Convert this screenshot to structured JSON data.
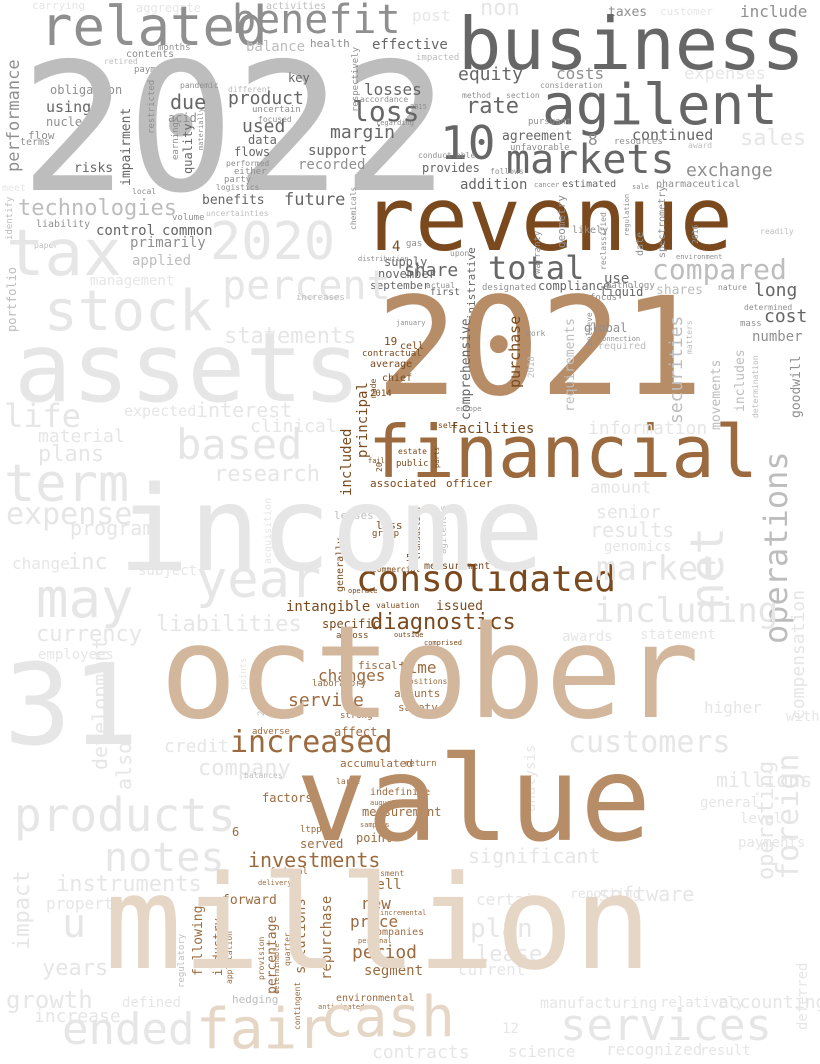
{
  "colors": {
    "background": "#ffffff",
    "grey_dark": "#666666",
    "grey_mid": "#8f8f8f",
    "grey_light": "#bdbdbd",
    "grey_faint": "#e6e6e6",
    "brown_dark": "#7a4a1e",
    "brown_mid": "#9b6b3f",
    "brown_light": "#b78d68",
    "beige": "#d3b79c",
    "beige_faint": "#e6d6c6"
  },
  "words": {
    "w2022": "2022",
    "w2021": "2021",
    "w2020": "2020",
    "business": "business",
    "agilent": "agilent",
    "related": "related",
    "benefit": "benefit",
    "revenue": "revenue",
    "financial": "financial",
    "markets": "markets",
    "w10": "10",
    "tax": "tax",
    "assets": "assets",
    "stock": "stock",
    "income": "income",
    "october": "october",
    "value": "value",
    "million": "million",
    "consolidated": "consolidated",
    "diagnostics": "diagnostics",
    "increased": "increased",
    "cash": "cash",
    "fair": "fair",
    "total": "total",
    "compared": "compared",
    "operations": "operations",
    "products": "products",
    "notes": "notes",
    "w31": "31",
    "ended": "ended",
    "services": "services",
    "percent": "percent",
    "may": "may",
    "year": "year",
    "term": "term",
    "based": "based",
    "market": "market",
    "customers": "customers",
    "including": "including",
    "net": "net",
    "foreign": "foreign",
    "investments": "investments",
    "exchange": "exchange",
    "equity": "equity",
    "loss": "loss",
    "losses": "losses",
    "rate": "rate",
    "due": "due",
    "used": "used",
    "product": "product",
    "costs": "costs",
    "technologies": "technologies",
    "future": "future",
    "support": "support",
    "margin": "margin",
    "addition": "addition",
    "agreement": "agreement",
    "continued": "continued",
    "sales": "sales",
    "share": "share",
    "long": "long",
    "cost": "cost",
    "control": "control",
    "common": "common",
    "primarily": "primarily",
    "applied": "applied",
    "effective": "effective",
    "balance": "balance",
    "flows": "flows",
    "benefits": "benefits",
    "include": "include",
    "taxes": "taxes",
    "performance": "performance",
    "impairment": "impairment",
    "using": "using",
    "nucleic": "nucleic",
    "obligation": "obligation",
    "facilities": "facilities",
    "service": "service",
    "changes": "changes",
    "intangible": "intangible",
    "specific": "specific",
    "time": "time",
    "amounts": "amounts",
    "safety": "safety",
    "issued": "issued",
    "period": "period",
    "solutions": "solutions",
    "new": "new",
    "well": "well",
    "price": "price",
    "companies": "companies",
    "segment": "segment",
    "repurchase": "repurchase",
    "percentage": "percentage",
    "industry": "industry",
    "forward": "forward",
    "following": "following",
    "factors": "factors",
    "accumulated": "accumulated",
    "affect": "affect",
    "included": "included",
    "principal": "principal",
    "officer": "officer",
    "associated": "associated",
    "comprehensive": "comprehensive",
    "purchase": "purchase",
    "securities": "securities",
    "includes": "includes",
    "number": "number",
    "goodwill": "goodwill",
    "requirements": "requirements",
    "compliance": "compliance",
    "use": "use",
    "liquid": "liquid",
    "global": "global",
    "shares": "shares",
    "instruments": "instruments",
    "impact": "impact",
    "years": "years",
    "growth": "growth",
    "liabilities": "liabilities",
    "currency": "currency",
    "inc": "inc",
    "expense": "expense",
    "research": "research",
    "interest": "interest",
    "life": "life",
    "plans": "plans",
    "statements": "statements",
    "development": "development",
    "company": "company",
    "significant": "significant",
    "software": "software",
    "compensation": "compensation",
    "plan": "plan",
    "lease": "lease",
    "contracts": "contracts",
    "inventory": "inventory",
    "property": "property",
    "gas": "gas",
    "liability": "liability",
    "risks": "risks",
    "relatively": "relatively",
    "health": "health",
    "key": "key",
    "data": "data",
    "quality": "quality",
    "acid": "acid",
    "recorded": "recorded",
    "exchange_rates": "respectively",
    "activities": "activities",
    "aggregate": "aggregate",
    "months": "months",
    "contents": "contents",
    "payment": "payment",
    "retired": "retired",
    "flow": "flow",
    "terms": "terms",
    "estimated": "estimated",
    "pharmaceutical": "pharmaceutical",
    "november": "november",
    "september": "september",
    "supply": "supply",
    "first": "first",
    "designated": "designated",
    "actual": "actual",
    "administrative": "administrative",
    "geometry": "geometry",
    "warranty": "warranty",
    "likely": "likely",
    "date": "date",
    "reclassified": "reclassified",
    "spectrometry": "spectrometry",
    "focus": "focus",
    "pathology": "pathology",
    "believe": "believe",
    "required": "required",
    "movements": "movements",
    "determination": "determination",
    "w19": "19",
    "cell": "cell",
    "contractual": "contractual",
    "average": "average",
    "made": "made",
    "chief": "chief",
    "w2014": "2014",
    "w2016": "2016",
    "w2018": "2018",
    "w4": "4",
    "w5": "5",
    "w6": "6",
    "w8": "8",
    "w20": "20",
    "sell": "sell",
    "estate": "estate",
    "public": "public",
    "fail": "fail",
    "parts": "parts",
    "less": "less",
    "group": "group",
    "leases": "leases",
    "measurement": "measurement",
    "transaction": "transaction",
    "generally": "generally",
    "commercial": "commercial",
    "operate": "operate",
    "valuation": "valuation",
    "across": "across",
    "comprised": "comprised",
    "outside": "outside",
    "fiscal": "fiscal",
    "laboratory": "laboratory",
    "positions": "positions",
    "strong": "strong",
    "adverse": "adverse",
    "return": "return",
    "indefinite": "indefinite",
    "august": "august",
    "large": "large",
    "point": "point",
    "samples": "samples",
    "ltpp": "ltpp",
    "served": "served",
    "federal": "federal",
    "delivery": "delivery",
    "assessment": "assessment",
    "incremental": "incremental",
    "personal": "personal",
    "application": "application",
    "determinable": "determinable",
    "provision": "provision",
    "quarter": "quarter",
    "contingent": "contingent",
    "anticipated": "anticipated",
    "environmental": "environmental",
    "hedging": "hedging",
    "regulatory": "regulatory",
    "defined": "defined",
    "employees": "employees",
    "acquisition": "acquisition",
    "subject": "subject",
    "increases": "increases",
    "management": "management",
    "paper": "paper",
    "identify": "identify",
    "portfolio": "portfolio",
    "volume": "volume",
    "uncertainties": "uncertainties",
    "logistics": "logistics",
    "either": "either",
    "party": "party",
    "performed": "performed",
    "different": "different",
    "pandemic": "pandemic",
    "uncertain": "uncertain",
    "focused": "focused",
    "regarding": "regarding",
    "accordance": "accordance",
    "impacted": "impacted",
    "method": "method",
    "section": "section",
    "consideration": "consideration",
    "pursuant": "pursuant",
    "unfavorable": "unfavorable",
    "follows": "follows",
    "conduct": "conduct",
    "provides": "provides",
    "able": "able",
    "resources": "resources",
    "award": "award",
    "cancer": "cancer",
    "sale": "sale",
    "chemicals": "chemicals",
    "local": "local",
    "upon": "upon",
    "distribution": "distribution",
    "environment": "environment",
    "readily": "readily",
    "mass": "mass",
    "determined": "determined",
    "nature": "nature",
    "connection": "connection",
    "matters": "matters",
    "regulation": "regulation",
    "january": "january",
    "work": "work",
    "europe": "europe",
    "agilents": "agilent's",
    "senior": "senior",
    "results": "results",
    "genomics": "genomics",
    "amount": "amount",
    "awards": "awards",
    "statement": "statement",
    "higher": "higher",
    "millions": "millions",
    "level": "level",
    "general": "general",
    "within": "within",
    "payments": "payments",
    "reporting": "reporting",
    "certain": "certain",
    "current": "current",
    "manufacturing": "manufacturing",
    "accounting": "accounting",
    "recognized": "recognized",
    "science": "science",
    "result": "result",
    "u": "u",
    "w12": "12",
    "clinical": "clinical",
    "information": "information",
    "carrying": "carrying",
    "non": "non",
    "customer": "customer",
    "post": "post",
    "expenses": "expenses",
    "earnings": "earnings",
    "materially": "materially",
    "restricted": "restricted",
    "w2015": "2015",
    "w2017": "2017",
    "mete": "meet",
    "expected": "expected",
    "material": "material",
    "change": "change",
    "program": "program",
    "deferred": "deferred",
    "operating": "operating",
    "also": "also",
    "credit": "credit",
    "analysis": "analysis",
    "points": "points",
    "balances": "balances"
  }
}
